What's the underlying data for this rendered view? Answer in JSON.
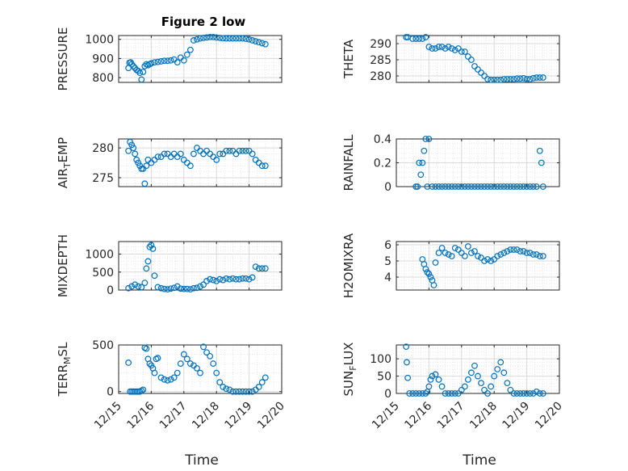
{
  "title": "Figure 2 low",
  "x_axis_label": "Time",
  "x_tick_labels": [
    "12/15",
    "12/16",
    "12/17",
    "12/18",
    "12/19",
    "12/20"
  ],
  "marker_color": "#0072BD",
  "chart_data": [
    {
      "type": "scatter",
      "ylabel": "PRESSURE",
      "title": "Figure 2 low",
      "xlim": [
        0,
        5
      ],
      "ylim": [
        775,
        1020
      ],
      "yticks": [
        800,
        900,
        1000
      ],
      "grid": true,
      "x": [
        0.3,
        0.33,
        0.37,
        0.4,
        0.45,
        0.5,
        0.55,
        0.6,
        0.65,
        0.7,
        0.75,
        0.8,
        0.85,
        0.9,
        0.95,
        1.0,
        1.1,
        1.2,
        1.3,
        1.4,
        1.5,
        1.6,
        1.7,
        1.8,
        1.9,
        2.0,
        2.1,
        2.2,
        2.3,
        2.4,
        2.5,
        2.6,
        2.7,
        2.8,
        2.9,
        3.0,
        3.1,
        3.2,
        3.3,
        3.4,
        3.5,
        3.6,
        3.7,
        3.8,
        3.9,
        4.0,
        4.1,
        4.2,
        4.3,
        4.4,
        4.5
      ],
      "y": [
        850,
        878,
        880,
        870,
        860,
        850,
        840,
        835,
        825,
        790,
        830,
        860,
        870,
        865,
        870,
        875,
        880,
        882,
        885,
        888,
        888,
        890,
        895,
        880,
        905,
        890,
        920,
        945,
        995,
        1000,
        1005,
        1008,
        1010,
        1012,
        1012,
        1010,
        1008,
        1006,
        1005,
        1005,
        1005,
        1005,
        1005,
        1005,
        1003,
        1000,
        995,
        990,
        985,
        980,
        975
      ]
    },
    {
      "type": "scatter",
      "ylabel": "THETA",
      "xlim": [
        0,
        5
      ],
      "ylim": [
        278,
        292.5
      ],
      "yticks": [
        280,
        285,
        290
      ],
      "grid": true,
      "x": [
        0.3,
        0.35,
        0.5,
        0.6,
        0.7,
        0.8,
        0.9,
        1.0,
        1.1,
        1.2,
        1.3,
        1.4,
        1.5,
        1.6,
        1.7,
        1.8,
        1.9,
        2.0,
        2.1,
        2.2,
        2.3,
        2.4,
        2.5,
        2.6,
        2.7,
        2.8,
        2.9,
        3.0,
        3.1,
        3.2,
        3.3,
        3.4,
        3.5,
        3.6,
        3.7,
        3.8,
        3.9,
        4.0,
        4.1,
        4.2,
        4.3,
        4.4,
        4.5
      ],
      "y": [
        292,
        292,
        291.5,
        291.5,
        291.5,
        291.5,
        292,
        289,
        288.5,
        288.5,
        289,
        289,
        288.5,
        289,
        288.5,
        288,
        288.5,
        287.5,
        287.5,
        286,
        285,
        283,
        282,
        281,
        280,
        279,
        278.8,
        278.8,
        278.8,
        278.8,
        279,
        279,
        279,
        279,
        279.2,
        279.2,
        279.3,
        279,
        279,
        279.3,
        279.5,
        279.5,
        279.5
      ]
    },
    {
      "type": "scatter",
      "ylabel": "AIR_TEMP",
      "xlim": [
        0,
        5
      ],
      "ylim": [
        273.5,
        281.5
      ],
      "yticks": [
        275,
        280
      ],
      "grid": true,
      "x": [
        0.3,
        0.35,
        0.4,
        0.45,
        0.5,
        0.55,
        0.6,
        0.65,
        0.7,
        0.75,
        0.8,
        0.85,
        0.9,
        1.0,
        1.1,
        1.2,
        1.3,
        1.4,
        1.5,
        1.6,
        1.7,
        1.8,
        1.9,
        2.0,
        2.1,
        2.2,
        2.3,
        2.4,
        2.5,
        2.6,
        2.7,
        2.8,
        2.9,
        3.0,
        3.1,
        3.2,
        3.3,
        3.4,
        3.5,
        3.6,
        3.7,
        3.8,
        3.9,
        4.0,
        4.1,
        4.2,
        4.3,
        4.4,
        4.5
      ],
      "y": [
        279.5,
        281,
        280.5,
        280,
        279,
        278,
        277.5,
        277,
        276.5,
        276.5,
        274,
        277,
        278,
        277.5,
        278,
        278.5,
        278.5,
        279,
        279,
        278.5,
        279,
        278.5,
        279,
        278,
        277.5,
        277,
        279,
        280,
        279.5,
        279,
        279.5,
        279,
        278.5,
        278,
        279,
        279,
        279.5,
        279.5,
        279.5,
        279,
        279.5,
        279.5,
        279.5,
        279.5,
        279,
        278,
        277.5,
        277,
        277
      ]
    },
    {
      "type": "scatter",
      "ylabel": "RAINFALL",
      "xlim": [
        0,
        5
      ],
      "ylim": [
        0,
        0.4
      ],
      "yticks": [
        0,
        0.2,
        0.4
      ],
      "grid": true,
      "x": [
        0.6,
        0.65,
        0.7,
        0.75,
        0.8,
        0.85,
        0.9,
        0.95,
        1.0,
        1.1,
        1.2,
        1.3,
        1.4,
        1.5,
        1.6,
        1.7,
        1.8,
        1.9,
        2.0,
        2.1,
        2.2,
        2.3,
        2.4,
        2.5,
        2.6,
        2.7,
        2.8,
        2.9,
        3.0,
        3.1,
        3.2,
        3.3,
        3.4,
        3.5,
        3.6,
        3.7,
        3.8,
        3.9,
        4.0,
        4.1,
        4.2,
        4.3,
        4.4,
        4.45,
        4.5
      ],
      "y": [
        0,
        0,
        0.2,
        0.1,
        0.2,
        0.3,
        0.4,
        0,
        0.4,
        0,
        0,
        0,
        0,
        0,
        0,
        0,
        0,
        0,
        0,
        0,
        0,
        0,
        0,
        0,
        0,
        0,
        0,
        0,
        0,
        0,
        0,
        0,
        0,
        0,
        0,
        0,
        0,
        0,
        0,
        0,
        0,
        0,
        0.3,
        0.2,
        0
      ]
    },
    {
      "type": "scatter",
      "ylabel": "MIXDEPTH",
      "xlim": [
        0,
        5
      ],
      "ylim": [
        0,
        1350
      ],
      "yticks": [
        0,
        500,
        1000
      ],
      "grid": true,
      "x": [
        0.3,
        0.4,
        0.5,
        0.6,
        0.7,
        0.8,
        0.85,
        0.9,
        0.95,
        1.0,
        1.05,
        1.1,
        1.2,
        1.3,
        1.4,
        1.5,
        1.6,
        1.7,
        1.8,
        1.9,
        2.0,
        2.1,
        2.2,
        2.3,
        2.4,
        2.5,
        2.6,
        2.7,
        2.8,
        2.9,
        3.0,
        3.1,
        3.2,
        3.3,
        3.4,
        3.5,
        3.6,
        3.7,
        3.8,
        3.9,
        4.0,
        4.1,
        4.2,
        4.3,
        4.4,
        4.5
      ],
      "y": [
        50,
        100,
        150,
        100,
        80,
        200,
        600,
        800,
        1200,
        1250,
        1150,
        400,
        80,
        50,
        30,
        20,
        40,
        60,
        100,
        40,
        30,
        30,
        20,
        50,
        60,
        100,
        150,
        250,
        300,
        280,
        250,
        300,
        280,
        320,
        300,
        320,
        300,
        300,
        320,
        320,
        300,
        350,
        650,
        600,
        600,
        600
      ]
    },
    {
      "type": "scatter",
      "ylabel": "H2OMIXRA",
      "xlim": [
        0,
        5
      ],
      "ylim": [
        3.2,
        6.2
      ],
      "yticks": [
        4,
        5,
        6
      ],
      "grid": true,
      "x": [
        0.8,
        0.85,
        0.9,
        0.95,
        1.0,
        1.05,
        1.1,
        1.15,
        1.2,
        1.3,
        1.4,
        1.5,
        1.6,
        1.7,
        1.8,
        1.9,
        2.0,
        2.1,
        2.2,
        2.3,
        2.4,
        2.5,
        2.6,
        2.7,
        2.8,
        2.9,
        3.0,
        3.1,
        3.2,
        3.3,
        3.4,
        3.5,
        3.6,
        3.7,
        3.8,
        3.9,
        4.0,
        4.1,
        4.2,
        4.3,
        4.4,
        4.5
      ],
      "y": [
        5.1,
        4.8,
        4.5,
        4.3,
        4.2,
        4.0,
        3.8,
        3.5,
        4.9,
        5.5,
        5.8,
        5.5,
        5.4,
        5.3,
        5.8,
        5.7,
        5.5,
        5.3,
        5.9,
        5.5,
        5.6,
        5.3,
        5.2,
        5.0,
        5.1,
        5.0,
        5.1,
        5.3,
        5.4,
        5.5,
        5.6,
        5.7,
        5.7,
        5.7,
        5.6,
        5.6,
        5.5,
        5.5,
        5.4,
        5.4,
        5.3,
        5.3
      ]
    },
    {
      "type": "scatter",
      "ylabel": "TERR_MSL",
      "xlim": [
        0,
        5
      ],
      "ylim": [
        -20,
        500
      ],
      "yticks": [
        0,
        500
      ],
      "grid": true,
      "x": [
        0.3,
        0.35,
        0.4,
        0.45,
        0.5,
        0.55,
        0.6,
        0.65,
        0.7,
        0.75,
        0.8,
        0.85,
        0.9,
        0.95,
        1.0,
        1.05,
        1.1,
        1.15,
        1.2,
        1.3,
        1.4,
        1.5,
        1.6,
        1.7,
        1.8,
        1.9,
        2.0,
        2.1,
        2.2,
        2.3,
        2.4,
        2.5,
        2.6,
        2.7,
        2.8,
        2.9,
        3.0,
        3.1,
        3.2,
        3.3,
        3.4,
        3.5,
        3.6,
        3.7,
        3.8,
        3.9,
        4.0,
        4.1,
        4.2,
        4.3,
        4.4,
        4.5
      ],
      "y": [
        310,
        0,
        0,
        0,
        0,
        0,
        0,
        0,
        10,
        20,
        470,
        460,
        350,
        300,
        280,
        250,
        200,
        350,
        360,
        150,
        130,
        120,
        130,
        150,
        200,
        300,
        400,
        350,
        300,
        280,
        250,
        200,
        480,
        420,
        380,
        300,
        200,
        100,
        50,
        30,
        20,
        0,
        0,
        0,
        0,
        0,
        0,
        0,
        20,
        50,
        100,
        150
      ]
    },
    {
      "type": "scatter",
      "ylabel": "SUN_FLUX",
      "xlim": [
        0,
        5
      ],
      "ylim": [
        0,
        140
      ],
      "yticks": [
        0,
        50,
        100
      ],
      "grid": true,
      "x": [
        0.3,
        0.32,
        0.35,
        0.4,
        0.5,
        0.6,
        0.7,
        0.8,
        0.9,
        0.95,
        1.0,
        1.05,
        1.1,
        1.2,
        1.3,
        1.4,
        1.5,
        1.6,
        1.7,
        1.8,
        1.9,
        2.0,
        2.1,
        2.2,
        2.3,
        2.4,
        2.5,
        2.6,
        2.7,
        2.8,
        2.9,
        3.0,
        3.1,
        3.2,
        3.3,
        3.4,
        3.5,
        3.6,
        3.7,
        3.8,
        3.9,
        4.0,
        4.1,
        4.2,
        4.3,
        4.4,
        4.5
      ],
      "y": [
        135,
        90,
        45,
        0,
        0,
        0,
        0,
        0,
        0,
        5,
        20,
        40,
        50,
        55,
        40,
        20,
        0,
        0,
        0,
        0,
        0,
        10,
        20,
        40,
        60,
        80,
        50,
        30,
        10,
        0,
        20,
        50,
        70,
        90,
        60,
        30,
        10,
        0,
        0,
        0,
        0,
        0,
        0,
        0,
        5,
        0,
        0
      ]
    }
  ]
}
